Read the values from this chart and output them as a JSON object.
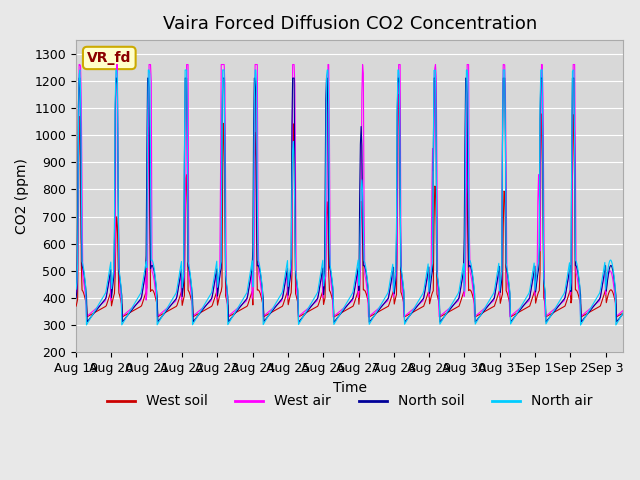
{
  "title": "Vaira Forced Diffusion CO2 Concentration",
  "xlabel": "Time",
  "ylabel": "CO2 (ppm)",
  "ylim": [
    200,
    1300
  ],
  "yticks": [
    200,
    300,
    400,
    500,
    600,
    700,
    800,
    900,
    1000,
    1100,
    1200,
    1300
  ],
  "x_labels": [
    "Aug 19",
    "Aug 20",
    "Aug 21",
    "Aug 22",
    "Aug 23",
    "Aug 24",
    "Aug 25",
    "Aug 26",
    "Aug 27",
    "Aug 28",
    "Aug 29",
    "Aug 30",
    "Aug 31",
    "Sep 1",
    "Sep 2",
    "Sep 3"
  ],
  "legend_label": "VR_fd",
  "series": {
    "west_soil": {
      "color": "#cc0000",
      "label": "West soil"
    },
    "west_air": {
      "color": "#ff00ff",
      "label": "West air"
    },
    "north_soil": {
      "color": "#000099",
      "label": "North soil"
    },
    "north_air": {
      "color": "#00ccff",
      "label": "North air"
    }
  },
  "background_color": "#e8e8e8",
  "plot_bg_color": "#d8d8d8",
  "grid_color": "#ffffff",
  "title_fontsize": 13,
  "axis_fontsize": 10,
  "tick_fontsize": 9,
  "n_days": 15.5
}
